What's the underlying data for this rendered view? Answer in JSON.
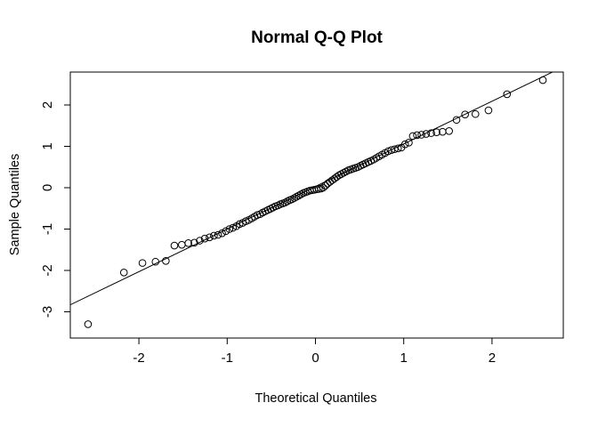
{
  "chart_data": {
    "type": "scatter",
    "subtype": "normal-qq-plot",
    "title": "Normal Q-Q Plot",
    "xlabel": "Theoretical Quantiles",
    "ylabel": "Sample Quantiles",
    "x_ticks": [
      -2,
      -1,
      0,
      1,
      2
    ],
    "y_ticks": [
      -3,
      -2,
      -1,
      0,
      1,
      2
    ],
    "xlim": [
      -2.78,
      2.81
    ],
    "ylim": [
      -3.6,
      2.8
    ],
    "grid": false,
    "legend": null,
    "marker": "open-circle",
    "point_color": "#000000",
    "line_color": "#000000",
    "background_color": "#ffffff",
    "reference_line": {
      "slope": 1.03,
      "intercept": 0.03
    },
    "n_points": 100,
    "points": {
      "x": [
        -2.576,
        -2.17,
        -1.96,
        -1.812,
        -1.695,
        -1.598,
        -1.514,
        -1.44,
        -1.372,
        -1.311,
        -1.254,
        -1.2,
        -1.15,
        -1.103,
        -1.058,
        -1.015,
        -0.974,
        -0.935,
        -0.896,
        -0.86,
        -0.824,
        -0.789,
        -0.755,
        -0.722,
        -0.69,
        -0.659,
        -0.628,
        -0.598,
        -0.568,
        -0.539,
        -0.51,
        -0.482,
        -0.454,
        -0.426,
        -0.399,
        -0.372,
        -0.345,
        -0.319,
        -0.292,
        -0.266,
        -0.24,
        -0.215,
        -0.189,
        -0.164,
        -0.138,
        -0.113,
        -0.088,
        -0.063,
        -0.038,
        -0.013,
        0.013,
        0.038,
        0.063,
        0.088,
        0.113,
        0.138,
        0.164,
        0.189,
        0.215,
        0.24,
        0.266,
        0.292,
        0.319,
        0.345,
        0.372,
        0.399,
        0.426,
        0.454,
        0.482,
        0.51,
        0.539,
        0.568,
        0.598,
        0.628,
        0.659,
        0.69,
        0.722,
        0.755,
        0.789,
        0.824,
        0.86,
        0.896,
        0.935,
        0.974,
        1.015,
        1.058,
        1.103,
        1.15,
        1.2,
        1.254,
        1.311,
        1.372,
        1.44,
        1.514,
        1.598,
        1.695,
        1.812,
        1.96,
        2.17,
        2.576
      ],
      "y": [
        -3.3,
        -2.05,
        -1.82,
        -1.79,
        -1.77,
        -1.4,
        -1.38,
        -1.34,
        -1.33,
        -1.28,
        -1.23,
        -1.2,
        -1.16,
        -1.14,
        -1.1,
        -1.05,
        -1.0,
        -0.97,
        -0.93,
        -0.88,
        -0.85,
        -0.81,
        -0.78,
        -0.74,
        -0.7,
        -0.66,
        -0.64,
        -0.6,
        -0.57,
        -0.54,
        -0.51,
        -0.48,
        -0.45,
        -0.43,
        -0.4,
        -0.38,
        -0.36,
        -0.33,
        -0.3,
        -0.28,
        -0.25,
        -0.22,
        -0.19,
        -0.16,
        -0.13,
        -0.11,
        -0.09,
        -0.07,
        -0.06,
        -0.05,
        -0.04,
        -0.03,
        -0.02,
        0.0,
        0.05,
        0.1,
        0.14,
        0.18,
        0.22,
        0.26,
        0.3,
        0.33,
        0.36,
        0.39,
        0.42,
        0.44,
        0.46,
        0.48,
        0.5,
        0.53,
        0.56,
        0.59,
        0.62,
        0.65,
        0.68,
        0.72,
        0.76,
        0.8,
        0.84,
        0.88,
        0.91,
        0.93,
        0.95,
        0.97,
        1.05,
        1.09,
        1.25,
        1.27,
        1.28,
        1.3,
        1.32,
        1.34,
        1.35,
        1.37,
        1.64,
        1.77,
        1.78,
        1.87,
        2.26,
        2.6
      ]
    }
  }
}
